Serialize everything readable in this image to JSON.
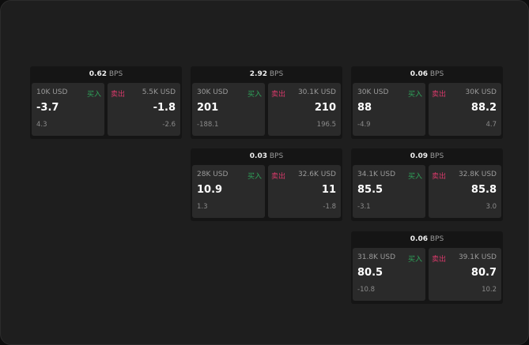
{
  "unit": "BPS",
  "buy_label": "买入",
  "sell_label": "卖出",
  "colors": {
    "buy": "#2fa35a",
    "sell": "#d8396a"
  },
  "cards": [
    {
      "bps": "0.62",
      "buy": {
        "size": "10K USD",
        "price": "-3.7",
        "change": "4.3"
      },
      "sell": {
        "size": "5.5K USD",
        "price": "-1.8",
        "change": "-2.6"
      }
    },
    {
      "bps": "2.92",
      "buy": {
        "size": "30K USD",
        "price": "201",
        "change": "-188.1"
      },
      "sell": {
        "size": "30.1K USD",
        "price": "210",
        "change": "196.5"
      }
    },
    {
      "bps": "0.06",
      "buy": {
        "size": "30K USD",
        "price": "88",
        "change": "-4.9"
      },
      "sell": {
        "size": "30K USD",
        "price": "88.2",
        "change": "4.7"
      }
    },
    {
      "bps": "0.03",
      "buy": {
        "size": "28K USD",
        "price": "10.9",
        "change": "1.3"
      },
      "sell": {
        "size": "32.6K USD",
        "price": "11",
        "change": "-1.8"
      }
    },
    {
      "bps": "0.09",
      "buy": {
        "size": "34.1K USD",
        "price": "85.5",
        "change": "-3.1"
      },
      "sell": {
        "size": "32.8K USD",
        "price": "85.8",
        "change": "3.0"
      }
    },
    {
      "bps": "0.06",
      "buy": {
        "size": "31.8K USD",
        "price": "80.5",
        "change": "-10.8"
      },
      "sell": {
        "size": "39.1K USD",
        "price": "80.7",
        "change": "10.2"
      }
    }
  ]
}
